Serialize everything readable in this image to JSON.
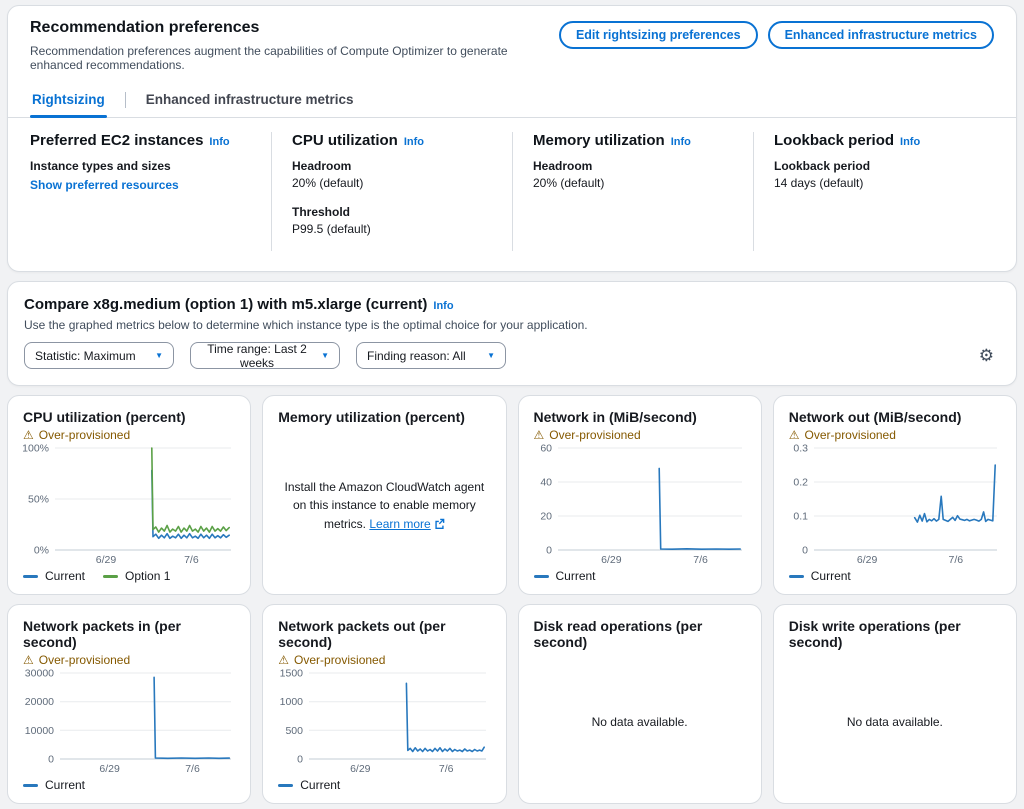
{
  "colors": {
    "accent": "#0972d3",
    "warning": "#855900",
    "blue": "#2878bd",
    "green": "#5aa046",
    "grid": "#e9ebed",
    "axis_label": "#5f6b7a"
  },
  "header": {
    "title": "Recommendation preferences",
    "description": "Recommendation preferences augment the capabilities of Compute Optimizer to generate enhanced recommendations.",
    "edit_button": "Edit rightsizing preferences",
    "metrics_button": "Enhanced infrastructure metrics"
  },
  "tabs": [
    {
      "label": "Rightsizing",
      "active": true
    },
    {
      "label": "Enhanced infrastructure metrics",
      "active": false
    }
  ],
  "preferences": {
    "columns": [
      {
        "title": "Preferred EC2 instances",
        "info": "Info",
        "fields": [
          {
            "label": "Instance types and sizes",
            "link": "Show preferred resources"
          }
        ]
      },
      {
        "title": "CPU utilization",
        "info": "Info",
        "fields": [
          {
            "label": "Headroom",
            "value": "20% (default)"
          },
          {
            "label": "Threshold",
            "value": "P99.5 (default)"
          }
        ]
      },
      {
        "title": "Memory utilization",
        "info": "Info",
        "fields": [
          {
            "label": "Headroom",
            "value": "20% (default)"
          }
        ]
      },
      {
        "title": "Lookback period",
        "info": "Info",
        "fields": [
          {
            "label": "Lookback period",
            "value": "14 days (default)"
          }
        ]
      }
    ]
  },
  "compare": {
    "title": "Compare x8g.medium (option 1) with m5.xlarge (current)",
    "info": "Info",
    "description": "Use the graphed metrics below to determine which instance type is the optimal choice for your application.",
    "dropdowns": [
      "Statistic: Maximum",
      "Time range: Last 2 weeks",
      "Finding reason: All"
    ],
    "gear_icon": "settings-gear"
  },
  "chart_data": [
    {
      "type": "line",
      "title": "CPU utilization (percent)",
      "badge": "Over-provisioned",
      "ylim": [
        0,
        100
      ],
      "ylabel_w": 32,
      "yticks": [
        {
          "v": 100,
          "label": "100%"
        },
        {
          "v": 50,
          "label": "50%"
        },
        {
          "v": 0,
          "label": "0%"
        }
      ],
      "xticks": [
        {
          "x": 0.29,
          "label": "6/29"
        },
        {
          "x": 0.775,
          "label": "7/6"
        }
      ],
      "series": [
        {
          "name": "Current",
          "color": "blue",
          "points": [
            [
              0.55,
              78
            ],
            [
              0.557,
              13
            ],
            [
              0.573,
              15.5
            ],
            [
              0.589,
              11.5
            ],
            [
              0.605,
              14.5
            ],
            [
              0.621,
              12
            ],
            [
              0.637,
              16
            ],
            [
              0.653,
              11.5
            ],
            [
              0.669,
              13.5
            ],
            [
              0.685,
              12
            ],
            [
              0.701,
              15.5
            ],
            [
              0.717,
              11.5
            ],
            [
              0.733,
              14.5
            ],
            [
              0.749,
              12
            ],
            [
              0.765,
              16
            ],
            [
              0.781,
              12
            ],
            [
              0.797,
              13.5
            ],
            [
              0.813,
              11.5
            ],
            [
              0.829,
              15.5
            ],
            [
              0.845,
              12
            ],
            [
              0.861,
              14.5
            ],
            [
              0.877,
              11.5
            ],
            [
              0.893,
              15.5
            ],
            [
              0.909,
              12
            ],
            [
              0.925,
              14
            ],
            [
              0.941,
              12
            ],
            [
              0.957,
              15
            ],
            [
              0.973,
              12.5
            ],
            [
              0.99,
              14.5
            ]
          ]
        },
        {
          "name": "Option 1",
          "color": "green",
          "points": [
            [
              0.55,
              100
            ],
            [
              0.557,
              20
            ],
            [
              0.573,
              22.5
            ],
            [
              0.589,
              17.5
            ],
            [
              0.605,
              21.5
            ],
            [
              0.621,
              18.5
            ],
            [
              0.637,
              24
            ],
            [
              0.653,
              17.5
            ],
            [
              0.669,
              20.5
            ],
            [
              0.685,
              18.5
            ],
            [
              0.701,
              23
            ],
            [
              0.717,
              17.5
            ],
            [
              0.733,
              21.5
            ],
            [
              0.749,
              18.5
            ],
            [
              0.765,
              24
            ],
            [
              0.781,
              18.5
            ],
            [
              0.797,
              20.5
            ],
            [
              0.813,
              17.5
            ],
            [
              0.829,
              23
            ],
            [
              0.845,
              18.5
            ],
            [
              0.861,
              21.5
            ],
            [
              0.877,
              17.5
            ],
            [
              0.893,
              23
            ],
            [
              0.909,
              18.5
            ],
            [
              0.925,
              21
            ],
            [
              0.941,
              18.5
            ],
            [
              0.957,
              22.5
            ],
            [
              0.973,
              19
            ],
            [
              0.99,
              22
            ]
          ]
        }
      ]
    },
    {
      "type": "message",
      "title": "Memory utilization (percent)",
      "message": "Install the Amazon CloudWatch agent on this instance to enable memory metrics.",
      "link_label": "Learn more"
    },
    {
      "type": "line",
      "title": "Network in (MiB/second)",
      "badge": "Over-provisioned",
      "ylim": [
        0,
        60
      ],
      "ylabel_w": 24,
      "yticks": [
        {
          "v": 60,
          "label": "60"
        },
        {
          "v": 40,
          "label": "40"
        },
        {
          "v": 20,
          "label": "20"
        },
        {
          "v": 0,
          "label": "0"
        }
      ],
      "xticks": [
        {
          "x": 0.29,
          "label": "6/29"
        },
        {
          "x": 0.775,
          "label": "7/6"
        }
      ],
      "series": [
        {
          "name": "Current",
          "color": "blue",
          "points": [
            [
              0.55,
              48
            ],
            [
              0.558,
              0.6
            ],
            [
              0.62,
              0.5
            ],
            [
              0.7,
              0.7
            ],
            [
              0.78,
              0.5
            ],
            [
              0.86,
              0.6
            ],
            [
              0.93,
              0.5
            ],
            [
              0.99,
              0.6
            ]
          ]
        }
      ]
    },
    {
      "type": "line",
      "title": "Network out (MiB/second)",
      "badge": "Over-provisioned",
      "ylim": [
        0,
        0.3
      ],
      "ylabel_w": 25,
      "yticks": [
        {
          "v": 0.3,
          "label": "0.3"
        },
        {
          "v": 0.2,
          "label": "0.2"
        },
        {
          "v": 0.1,
          "label": "0.1"
        },
        {
          "v": 0,
          "label": "0"
        }
      ],
      "xticks": [
        {
          "x": 0.29,
          "label": "6/29"
        },
        {
          "x": 0.775,
          "label": "7/6"
        }
      ],
      "series": [
        {
          "name": "Current",
          "color": "blue",
          "points": [
            [
              0.55,
              0.095
            ],
            [
              0.565,
              0.082
            ],
            [
              0.578,
              0.102
            ],
            [
              0.591,
              0.085
            ],
            [
              0.604,
              0.107
            ],
            [
              0.617,
              0.083
            ],
            [
              0.63,
              0.09
            ],
            [
              0.643,
              0.086
            ],
            [
              0.656,
              0.092
            ],
            [
              0.669,
              0.085
            ],
            [
              0.682,
              0.09
            ],
            [
              0.695,
              0.158
            ],
            [
              0.706,
              0.09
            ],
            [
              0.719,
              0.087
            ],
            [
              0.732,
              0.084
            ],
            [
              0.745,
              0.09
            ],
            [
              0.758,
              0.096
            ],
            [
              0.771,
              0.087
            ],
            [
              0.784,
              0.101
            ],
            [
              0.797,
              0.091
            ],
            [
              0.81,
              0.089
            ],
            [
              0.823,
              0.087
            ],
            [
              0.836,
              0.09
            ],
            [
              0.849,
              0.086
            ],
            [
              0.862,
              0.088
            ],
            [
              0.875,
              0.09
            ],
            [
              0.888,
              0.088
            ],
            [
              0.901,
              0.085
            ],
            [
              0.914,
              0.09
            ],
            [
              0.927,
              0.112
            ],
            [
              0.938,
              0.084
            ],
            [
              0.951,
              0.09
            ],
            [
              0.964,
              0.088
            ],
            [
              0.977,
              0.086
            ],
            [
              0.99,
              0.25
            ]
          ]
        }
      ]
    },
    {
      "type": "line",
      "title": "Network packets in (per second)",
      "badge": "Over-provisioned",
      "ylim": [
        0,
        30000
      ],
      "ylabel_w": 37,
      "yticks": [
        {
          "v": 30000,
          "label": "30000"
        },
        {
          "v": 20000,
          "label": "20000"
        },
        {
          "v": 10000,
          "label": "10000"
        },
        {
          "v": 0,
          "label": "0"
        }
      ],
      "xticks": [
        {
          "x": 0.29,
          "label": "6/29"
        },
        {
          "x": 0.775,
          "label": "7/6"
        }
      ],
      "series": [
        {
          "name": "Current",
          "color": "blue",
          "points": [
            [
              0.55,
              28500
            ],
            [
              0.558,
              350
            ],
            [
              0.63,
              250
            ],
            [
              0.71,
              350
            ],
            [
              0.79,
              250
            ],
            [
              0.87,
              350
            ],
            [
              0.93,
              250
            ],
            [
              0.99,
              300
            ]
          ]
        }
      ]
    },
    {
      "type": "line",
      "title": "Network packets out (per second)",
      "badge": "Over-provisioned",
      "ylim": [
        0,
        1500
      ],
      "ylabel_w": 31,
      "yticks": [
        {
          "v": 1500,
          "label": "1500"
        },
        {
          "v": 1000,
          "label": "1000"
        },
        {
          "v": 500,
          "label": "500"
        },
        {
          "v": 0,
          "label": "0"
        }
      ],
      "xticks": [
        {
          "x": 0.29,
          "label": "6/29"
        },
        {
          "x": 0.775,
          "label": "7/6"
        }
      ],
      "series": [
        {
          "name": "Current",
          "color": "blue",
          "points": [
            [
              0.55,
              1320
            ],
            [
              0.558,
              150
            ],
            [
              0.572,
              185
            ],
            [
              0.586,
              130
            ],
            [
              0.6,
              195
            ],
            [
              0.614,
              140
            ],
            [
              0.628,
              175
            ],
            [
              0.642,
              130
            ],
            [
              0.656,
              185
            ],
            [
              0.67,
              140
            ],
            [
              0.684,
              165
            ],
            [
              0.698,
              130
            ],
            [
              0.712,
              185
            ],
            [
              0.726,
              140
            ],
            [
              0.74,
              195
            ],
            [
              0.754,
              130
            ],
            [
              0.768,
              175
            ],
            [
              0.782,
              140
            ],
            [
              0.796,
              185
            ],
            [
              0.81,
              130
            ],
            [
              0.824,
              165
            ],
            [
              0.838,
              140
            ],
            [
              0.852,
              155
            ],
            [
              0.866,
              130
            ],
            [
              0.88,
              175
            ],
            [
              0.894,
              140
            ],
            [
              0.908,
              155
            ],
            [
              0.922,
              130
            ],
            [
              0.936,
              165
            ],
            [
              0.95,
              140
            ],
            [
              0.964,
              155
            ],
            [
              0.977,
              140
            ],
            [
              0.99,
              205
            ]
          ]
        }
      ]
    },
    {
      "type": "message",
      "title": "Disk read operations (per second)",
      "message": "No data available."
    },
    {
      "type": "message",
      "title": "Disk write operations (per second)",
      "message": "No data available."
    }
  ]
}
